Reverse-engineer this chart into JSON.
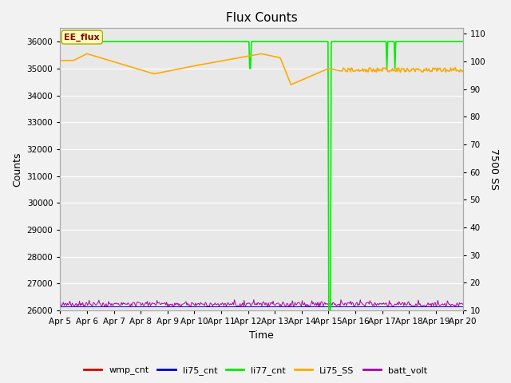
{
  "title": "Flux Counts",
  "ylabel_left": "Counts",
  "ylabel_right": "7500 SS",
  "xlabel": "Time",
  "ylim_left": [
    26000,
    36500
  ],
  "ylim_right": [
    10,
    112
  ],
  "yticks_left": [
    26000,
    27000,
    28000,
    29000,
    30000,
    31000,
    32000,
    33000,
    34000,
    35000,
    36000
  ],
  "yticks_right": [
    10,
    20,
    30,
    40,
    50,
    60,
    70,
    80,
    90,
    100,
    110
  ],
  "fig_bg_color": "#f2f2f2",
  "plot_bg_color": "#e8e8e8",
  "ee_flux_label": "EE_flux",
  "ee_flux_box_color": "#ffffbb",
  "ee_flux_text_color": "#880000",
  "legend_entries": [
    "wmp_cnt",
    "li75_cnt",
    "li77_cnt",
    "Li75_SS",
    "batt_volt"
  ],
  "colors": {
    "wmp_cnt": "#dd0000",
    "li75_cnt": "#0000cc",
    "li77_cnt": "#00ee00",
    "Li75_SS": "#ffaa00",
    "batt_volt": "#aa00aa"
  },
  "xlim": [
    0,
    15
  ],
  "xticks": [
    0,
    1,
    2,
    3,
    4,
    5,
    6,
    7,
    8,
    9,
    10,
    11,
    12,
    13,
    14,
    15
  ],
  "xticklabels": [
    "Apr 5",
    "Apr 6",
    "Apr 7",
    "Apr 8",
    "Apr 9",
    "Apr 10",
    "Apr 11",
    "Apr 12",
    "Apr 13",
    "Apr 14",
    "Apr 15",
    "Apr 16",
    "Apr 17",
    "Apr 18",
    "Apr 19",
    "Apr 20"
  ],
  "figsize": [
    6.4,
    4.8
  ],
  "dpi": 100
}
